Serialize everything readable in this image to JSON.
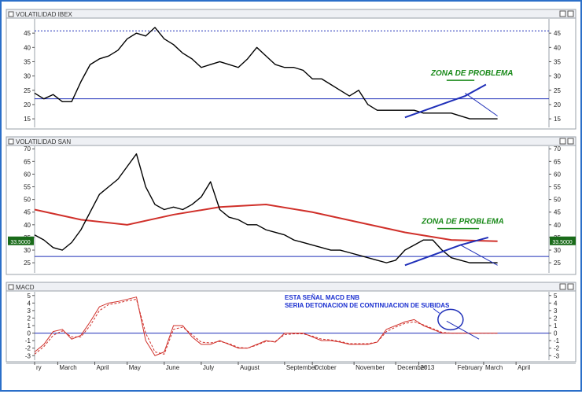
{
  "panels": [
    {
      "title": "VOLATILIDAD IBEX",
      "ylim": [
        12,
        50
      ],
      "ticks": [
        15,
        20,
        25,
        30,
        35,
        40,
        45
      ],
      "dotted_level": 45.8,
      "hline": 22,
      "annotation": "ZONA DE PROBLEMA",
      "series_x": [
        0,
        2,
        4,
        6,
        8,
        10,
        12,
        14,
        16,
        18,
        20,
        22,
        24,
        26,
        28,
        30,
        32,
        34,
        36,
        38,
        40,
        42,
        44,
        46,
        48,
        50,
        52,
        54,
        56,
        58,
        60,
        62,
        64,
        66,
        68,
        70,
        72,
        74,
        76,
        78,
        80,
        82,
        84,
        86,
        88,
        90,
        92,
        94,
        96,
        98,
        100
      ],
      "series_y": [
        24,
        22,
        23.5,
        21,
        21,
        28,
        34,
        36,
        37,
        39,
        43,
        45,
        44,
        47,
        43,
        41,
        38,
        36,
        33,
        34,
        35,
        34,
        33,
        36,
        40,
        37,
        34,
        33,
        33,
        32,
        29,
        29,
        27,
        25,
        23,
        25,
        20,
        18,
        18,
        18,
        18,
        18,
        17,
        17,
        17,
        17,
        16,
        15,
        15,
        15,
        15
      ],
      "trend": [
        [
          80,
          15.5
        ],
        [
          93,
          23
        ],
        [
          97.5,
          27
        ]
      ],
      "trend_down": [
        [
          93,
          24
        ],
        [
          100,
          16
        ]
      ],
      "marker": [
        [
          89,
          28.5
        ],
        [
          95,
          28.5
        ]
      ]
    },
    {
      "title": "VOLATILIDAD SAN",
      "ylim": [
        21,
        71
      ],
      "ticks": [
        25,
        30,
        35,
        40,
        45,
        50,
        55,
        60,
        65,
        70
      ],
      "hline": 27.5,
      "value_label": "33.5000",
      "annotation": "ZONA DE PROBLEMA",
      "series_x": [
        0,
        2,
        4,
        6,
        8,
        10,
        12,
        14,
        16,
        18,
        20,
        22,
        24,
        26,
        28,
        30,
        32,
        34,
        36,
        38,
        40,
        42,
        44,
        46,
        48,
        50,
        52,
        54,
        56,
        58,
        60,
        62,
        64,
        66,
        68,
        70,
        72,
        74,
        76,
        78,
        80,
        82,
        84,
        86,
        88,
        90,
        92,
        94,
        96,
        98,
        100
      ],
      "series_y": [
        36,
        34,
        31,
        30,
        33,
        38,
        45,
        52,
        55,
        58,
        63,
        68,
        55,
        48,
        46,
        47,
        46,
        48,
        51,
        57,
        46,
        43,
        42,
        40,
        40,
        38,
        37,
        36,
        34,
        33,
        32,
        31,
        30,
        30,
        29,
        28,
        27,
        26,
        25,
        26,
        30,
        32,
        34,
        34,
        30,
        27,
        26,
        25,
        25,
        25,
        25
      ],
      "ma_x": [
        0,
        10,
        20,
        30,
        40,
        50,
        60,
        70,
        80,
        90,
        100
      ],
      "ma_y": [
        46,
        42,
        40,
        44,
        47,
        48,
        45,
        41,
        37,
        34,
        33.5
      ],
      "trend": [
        [
          80,
          24
        ],
        [
          92,
          32
        ],
        [
          98,
          35
        ]
      ],
      "trend_down": [
        [
          92,
          32
        ],
        [
          100,
          24
        ]
      ],
      "marker": [
        [
          87,
          38.5
        ],
        [
          96,
          38.5
        ]
      ]
    },
    {
      "title": "MACD",
      "ylim": [
        -3.6,
        5.5
      ],
      "ticks": [
        -3,
        -2,
        -1,
        0,
        1,
        2,
        3,
        4,
        5
      ],
      "hline": 0,
      "annotation_lines": [
        "ESTA SEÑAL MACD ENB",
        "SERIA DETONACION DE CONTINUACION DE SUBIDAS"
      ],
      "series_x": [
        0,
        2,
        4,
        6,
        8,
        10,
        12,
        14,
        16,
        18,
        20,
        22,
        24,
        26,
        28,
        30,
        32,
        34,
        36,
        38,
        40,
        42,
        44,
        46,
        48,
        50,
        52,
        54,
        56,
        58,
        60,
        62,
        64,
        66,
        68,
        70,
        72,
        74,
        76,
        78,
        80,
        82,
        84,
        86,
        88,
        90,
        92,
        94,
        96,
        98,
        100
      ],
      "macd": [
        -2.5,
        -1.5,
        0.2,
        0.5,
        -0.8,
        -0.3,
        1.5,
        3.5,
        4,
        4.2,
        4.5,
        4.8,
        -1,
        -3,
        -2.5,
        1,
        1,
        -0.5,
        -1.5,
        -1.5,
        -1,
        -1.5,
        -2,
        -2,
        -1.5,
        -1,
        -1.2,
        0,
        0,
        0,
        -0.5,
        -1,
        -1,
        -1.2,
        -1.5,
        -1.5,
        -1.5,
        -1.2,
        0.5,
        1,
        1.5,
        1.8,
        1,
        0.5,
        0,
        0,
        0,
        0,
        0,
        0,
        0
      ],
      "signal": [
        -2.8,
        -1.8,
        -0.3,
        0.3,
        -0.5,
        -0.5,
        1,
        3,
        3.8,
        4,
        4.3,
        4.5,
        0,
        -2.5,
        -2.8,
        0.5,
        0.8,
        -0.2,
        -1.2,
        -1.3,
        -1.1,
        -1.4,
        -1.9,
        -2,
        -1.6,
        -1.1,
        -1.1,
        -0.2,
        -0.1,
        -0.1,
        -0.4,
        -0.8,
        -0.9,
        -1.1,
        -1.4,
        -1.4,
        -1.4,
        -1.2,
        0.2,
        0.8,
        1.3,
        1.5,
        1.1,
        0.6,
        0.1,
        0,
        0,
        0,
        0,
        0,
        0
      ],
      "trend_down": [
        [
          89,
          1.6
        ],
        [
          96,
          -0.8
        ]
      ]
    }
  ],
  "x_axis": {
    "labels": [
      "ry",
      "March",
      "April",
      "May",
      "June",
      "July",
      "August",
      "September",
      "October",
      "November",
      "December",
      "2013",
      "February",
      "March",
      "April"
    ],
    "positions": [
      0,
      5,
      13,
      20,
      28,
      36,
      44,
      54,
      60,
      69,
      78,
      83,
      91,
      97,
      104
    ]
  },
  "colors": {
    "price": "#000000",
    "ma": "#d0302a",
    "macd": "#d0302a",
    "trend": "#1f2fb8",
    "hline": "#1f2fb8",
    "annotation": "#1a8a1a",
    "note": "#1a2fd0",
    "value_label_bg": "#1a6b1a"
  }
}
